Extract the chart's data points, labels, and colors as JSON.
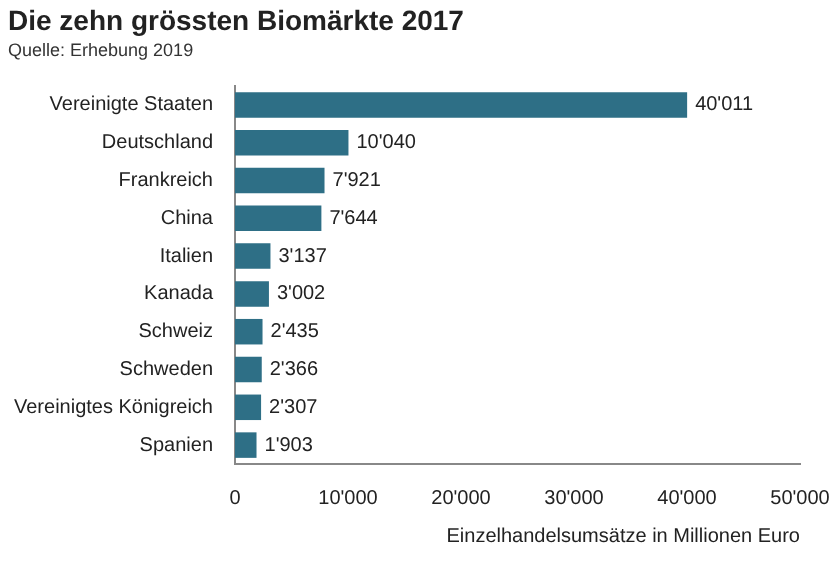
{
  "chart_data": {
    "type": "bar",
    "orientation": "horizontal",
    "title": "Die zehn grössten Biomärkte 2017",
    "subtitle": "Quelle: Erhebung 2019",
    "xlabel": "Einzelhandelsumsätze in Millionen Euro",
    "categories": [
      "Vereinigte Staaten",
      "Deutschland",
      "Frankreich",
      "China",
      "Italien",
      "Kanada",
      "Schweiz",
      "Schweden",
      "Vereinigtes Königreich",
      "Spanien"
    ],
    "values": [
      40011,
      10040,
      7921,
      7644,
      3137,
      3002,
      2435,
      2366,
      2307,
      1903
    ],
    "value_labels": [
      "40'011",
      "10'040",
      "7'921",
      "7'644",
      "3'137",
      "3'002",
      "2'435",
      "2'366",
      "2'307",
      "1'903"
    ],
    "color": "#2e6f86",
    "xlim": [
      0,
      50000
    ],
    "xticks": [
      0,
      {
        "value": 10000,
        "label": "10'000"
      },
      {
        "value": 20000,
        "label": "20'000"
      },
      {
        "value": 30000,
        "label": "30'000"
      },
      {
        "value": 40000,
        "label": "40'000"
      },
      {
        "value": 50000,
        "label": "50'000"
      }
    ],
    "grid": false,
    "legend": false
  }
}
